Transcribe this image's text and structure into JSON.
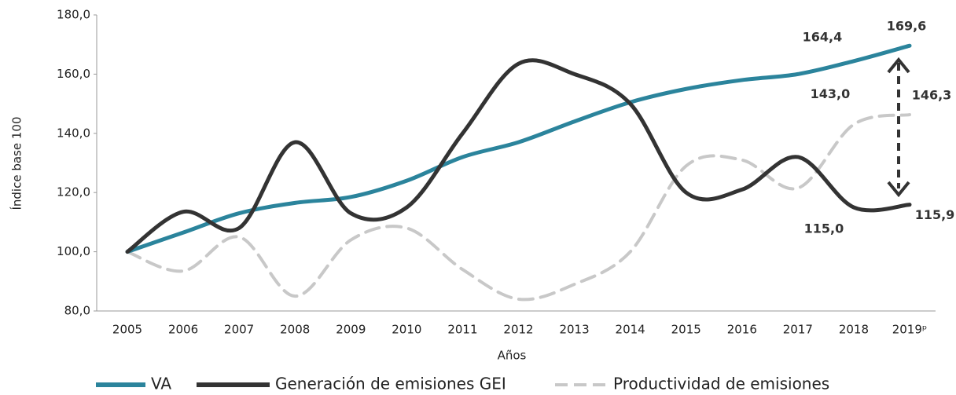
{
  "chart_data": {
    "type": "line",
    "y_label": "Índice base 100",
    "x_label": "Años",
    "categories": [
      "2005",
      "2006",
      "2007",
      "2008",
      "2009",
      "2010",
      "2011",
      "2012",
      "2013",
      "2014",
      "2015",
      "2016",
      "2017",
      "2018",
      "2019ᵖ"
    ],
    "series": [
      {
        "name": "VA",
        "color": "#2b849c",
        "dash": false,
        "values": [
          100,
          106.5,
          113,
          116.5,
          118.5,
          124,
          132,
          137,
          144,
          150.5,
          155,
          158,
          160,
          164.4,
          169.6
        ],
        "value_labels": [
          null,
          null,
          null,
          null,
          null,
          null,
          null,
          null,
          null,
          null,
          null,
          null,
          null,
          "164,4",
          "169,6"
        ]
      },
      {
        "name": "Generación de emisiones GEI",
        "color": "#333333",
        "dash": false,
        "values": [
          100,
          113.5,
          108,
          137,
          113,
          115,
          140,
          163.5,
          160,
          150,
          120,
          121,
          132,
          115.0,
          115.9
        ],
        "value_labels": [
          null,
          null,
          null,
          null,
          null,
          null,
          null,
          null,
          null,
          null,
          null,
          null,
          null,
          "115,0",
          "115,9"
        ]
      },
      {
        "name": "Productividad de emisiones",
        "color": "#c8c8c8",
        "dash": true,
        "values": [
          100,
          93.5,
          105,
          85,
          104,
          108,
          94,
          84,
          89,
          100,
          129,
          131,
          121.5,
          143.0,
          146.3
        ],
        "value_labels": [
          null,
          null,
          null,
          null,
          null,
          null,
          null,
          null,
          null,
          null,
          null,
          null,
          null,
          "143,0",
          "146,3"
        ]
      }
    ],
    "ylim": [
      80,
      180
    ],
    "yticks": [
      {
        "value": 80,
        "label": "80,0"
      },
      {
        "value": 100,
        "label": "100,0"
      },
      {
        "value": 120,
        "label": "120,0"
      },
      {
        "value": 140,
        "label": "140,0"
      },
      {
        "value": 160,
        "label": "160,0"
      },
      {
        "value": 180,
        "label": "180,0"
      }
    ],
    "legend": "bottom"
  }
}
